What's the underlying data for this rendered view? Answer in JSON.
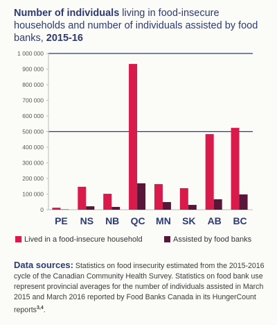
{
  "chart_data": {
    "type": "bar",
    "title_parts": [
      {
        "text": "Number of individuals",
        "bold": true
      },
      {
        "text": " living in food-insecure households and number of individuals assisted by food banks, ",
        "bold": false
      },
      {
        "text": "2015-16",
        "bold": true
      }
    ],
    "categories": [
      "PE",
      "NS",
      "NB",
      "QC",
      "MN",
      "SK",
      "AB",
      "BC"
    ],
    "series": [
      {
        "name": "Lived in a food-insecure household",
        "color": "#d81b4b",
        "values": [
          13000,
          147000,
          102000,
          933000,
          164000,
          138000,
          484000,
          524000
        ]
      },
      {
        "name": "Assisted by food banks",
        "color": "#5a1638",
        "values": [
          2000,
          22000,
          18000,
          169000,
          49000,
          31000,
          67000,
          98000
        ]
      }
    ],
    "ylim": [
      0,
      1000000
    ],
    "yticks": [
      {
        "value": 0,
        "label": "0"
      },
      {
        "value": 100000,
        "label": "100 000"
      },
      {
        "value": 200000,
        "label": "200 000"
      },
      {
        "value": 300000,
        "label": "300 000"
      },
      {
        "value": 400000,
        "label": "400 000"
      },
      {
        "value": 500000,
        "label": "500 000"
      },
      {
        "value": 600000,
        "label": "600 000"
      },
      {
        "value": 700000,
        "label": "700 000"
      },
      {
        "value": 800000,
        "label": "800 000"
      },
      {
        "value": 900000,
        "label": "900 000"
      },
      {
        "value": 1000000,
        "label": "1 000 000"
      }
    ],
    "gridlines": [
      500000,
      1000000
    ],
    "grid_color": "#2e3a72",
    "sources": {
      "label": "Data sources:",
      "text": " Statistics on food insecurity estimated from the 2015-2016 cycle of the Canadian Community Health Survey. Statistics on food bank use represent provincial averages for the number of individuals assisted in March 2015 and March 2016 reported by Food Banks Canada in its HungerCount reports",
      "refs": "3,4",
      "end": "."
    }
  }
}
